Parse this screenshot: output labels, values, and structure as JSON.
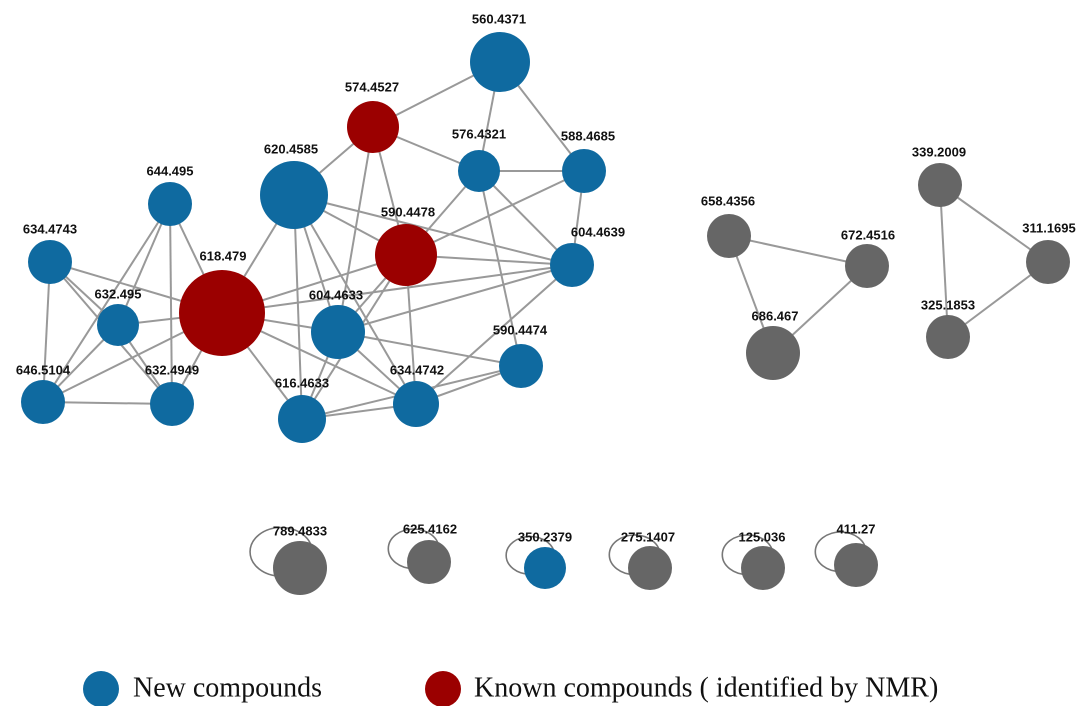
{
  "nodes": [
    {
      "label": "560.4371"
    },
    {
      "label": "574.4527"
    },
    {
      "label": "576.4321"
    },
    {
      "label": "588.4685"
    },
    {
      "label": "620.4585"
    },
    {
      "label": "644.495"
    },
    {
      "label": "658.4356"
    },
    {
      "label": "339.2009"
    },
    {
      "label": "590.4478"
    },
    {
      "label": "604.4639"
    },
    {
      "label": "672.4516"
    },
    {
      "label": "311.1695"
    },
    {
      "label": "634.4743"
    },
    {
      "label": "618.479"
    },
    {
      "label": "632.495"
    },
    {
      "label": "604.4633"
    },
    {
      "label": "686.467"
    },
    {
      "label": "325.1853"
    },
    {
      "label": "590.4474"
    },
    {
      "label": "646.5104"
    },
    {
      "label": "632.4949"
    },
    {
      "label": "616.4633"
    },
    {
      "label": "634.4742"
    },
    {
      "label": "789.4833"
    },
    {
      "label": "625.4162"
    },
    {
      "label": "350.2379"
    },
    {
      "label": "275.1407"
    },
    {
      "label": "125.036"
    },
    {
      "label": "411.27"
    }
  ],
  "legend": {
    "new": "New compounds",
    "known": "Known compounds ( identified by NMR)"
  }
}
